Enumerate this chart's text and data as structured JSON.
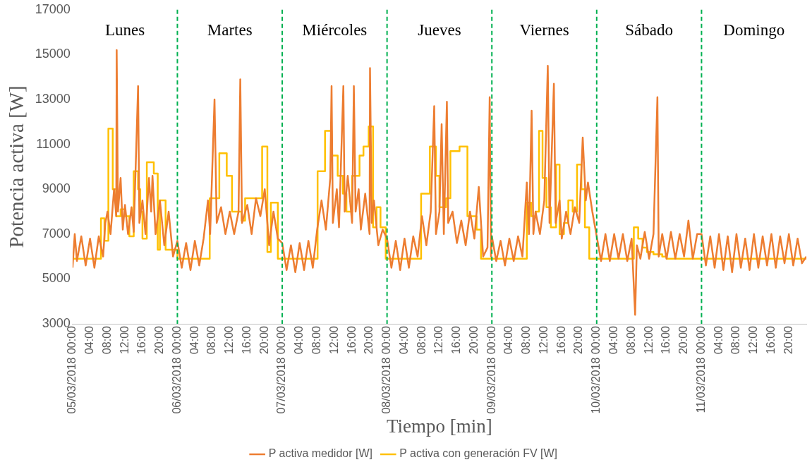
{
  "chart_data": {
    "type": "line",
    "xlabel": "Tiempo [min]",
    "ylabel": "Potencia activa [W]",
    "legend": "bottom",
    "grid": false,
    "marker": "none",
    "line_style": "solid",
    "xlim": [
      "2018-03-05T00:00",
      "2018-03-12T00:00"
    ],
    "ylim": [
      3000,
      17000
    ],
    "yticks": [
      3000,
      5000,
      7000,
      9000,
      11000,
      13000,
      15000,
      17000
    ],
    "xticks": [
      {
        "value": "2018-03-05T00:00",
        "label": "05/03/2018 00:00"
      },
      {
        "value": "2018-03-05T04:00",
        "label": "04:00"
      },
      {
        "value": "2018-03-05T08:00",
        "label": "08:00"
      },
      {
        "value": "2018-03-05T12:00",
        "label": "12:00"
      },
      {
        "value": "2018-03-05T16:00",
        "label": "16:00"
      },
      {
        "value": "2018-03-05T20:00",
        "label": "20:00"
      },
      {
        "value": "2018-03-06T00:00",
        "label": "06/03/2018 00:00"
      },
      {
        "value": "2018-03-06T04:00",
        "label": "04:00"
      },
      {
        "value": "2018-03-06T08:00",
        "label": "08:00"
      },
      {
        "value": "2018-03-06T12:00",
        "label": "12:00"
      },
      {
        "value": "2018-03-06T16:00",
        "label": "16:00"
      },
      {
        "value": "2018-03-06T20:00",
        "label": "20:00"
      },
      {
        "value": "2018-03-07T00:00",
        "label": "07/03/2018 00:00"
      },
      {
        "value": "2018-03-07T04:00",
        "label": "04:00"
      },
      {
        "value": "2018-03-07T08:00",
        "label": "08:00"
      },
      {
        "value": "2018-03-07T12:00",
        "label": "12:00"
      },
      {
        "value": "2018-03-07T16:00",
        "label": "16:00"
      },
      {
        "value": "2018-03-07T20:00",
        "label": "20:00"
      },
      {
        "value": "2018-03-08T00:00",
        "label": "08/03/2018 00:00"
      },
      {
        "value": "2018-03-08T04:00",
        "label": "04:00"
      },
      {
        "value": "2018-03-08T08:00",
        "label": "08:00"
      },
      {
        "value": "2018-03-08T12:00",
        "label": "12:00"
      },
      {
        "value": "2018-03-08T16:00",
        "label": "16:00"
      },
      {
        "value": "2018-03-08T20:00",
        "label": "20:00"
      },
      {
        "value": "2018-03-09T00:00",
        "label": "09/03/2018 00:00"
      },
      {
        "value": "2018-03-09T04:00",
        "label": "04:00"
      },
      {
        "value": "2018-03-09T08:00",
        "label": "08:00"
      },
      {
        "value": "2018-03-09T12:00",
        "label": "12:00"
      },
      {
        "value": "2018-03-09T16:00",
        "label": "16:00"
      },
      {
        "value": "2018-03-09T20:00",
        "label": "20:00"
      },
      {
        "value": "2018-03-10T00:00",
        "label": "10/03/2018 00:00"
      },
      {
        "value": "2018-03-10T04:00",
        "label": "04:00"
      },
      {
        "value": "2018-03-10T08:00",
        "label": "08:00"
      },
      {
        "value": "2018-03-10T12:00",
        "label": "12:00"
      },
      {
        "value": "2018-03-10T16:00",
        "label": "16:00"
      },
      {
        "value": "2018-03-10T20:00",
        "label": "20:00"
      },
      {
        "value": "2018-03-11T00:00",
        "label": "11/03/2018 00:00"
      },
      {
        "value": "2018-03-11T04:00",
        "label": "04:00"
      },
      {
        "value": "2018-03-11T08:00",
        "label": "08:00"
      },
      {
        "value": "2018-03-11T12:00",
        "label": "12:00"
      },
      {
        "value": "2018-03-11T16:00",
        "label": "16:00"
      },
      {
        "value": "2018-03-11T20:00",
        "label": "20:00"
      }
    ],
    "ref_lines": [
      {
        "axis": "x",
        "value": "2018-03-06T00:00",
        "color": "#00b050",
        "line_style": "dashed"
      },
      {
        "axis": "x",
        "value": "2018-03-07T00:00",
        "color": "#00b050",
        "line_style": "dashed"
      },
      {
        "axis": "x",
        "value": "2018-03-08T00:00",
        "color": "#00b050",
        "line_style": "dashed"
      },
      {
        "axis": "x",
        "value": "2018-03-09T00:00",
        "color": "#00b050",
        "line_style": "dashed"
      },
      {
        "axis": "x",
        "value": "2018-03-10T00:00",
        "color": "#00b050",
        "line_style": "dashed"
      },
      {
        "axis": "x",
        "value": "2018-03-11T00:00",
        "color": "#00b050",
        "line_style": "dashed"
      }
    ],
    "annotations": [
      "Lunes",
      "Martes",
      "Miércoles",
      "Jueves",
      "Viernes",
      "Sábado",
      "Domingo"
    ],
    "series": [
      {
        "name": "P activa medidor [W]",
        "color": "#ed7d31",
        "type": "line",
        "x": [
          "2018-03-05T00:00",
          "2018-03-05T00:30",
          "2018-03-05T01:00",
          "2018-03-05T02:00",
          "2018-03-05T03:00",
          "2018-03-05T04:00",
          "2018-03-05T05:00",
          "2018-03-05T06:00",
          "2018-03-05T07:00",
          "2018-03-05T07:30",
          "2018-03-05T08:00",
          "2018-03-05T08:42",
          "2018-03-05T09:30",
          "2018-03-05T10:00",
          "2018-03-05T10:06",
          "2018-03-05T10:24",
          "2018-03-05T11:00",
          "2018-03-05T11:30",
          "2018-03-05T12:00",
          "2018-03-05T12:42",
          "2018-03-05T13:30",
          "2018-03-05T14:00",
          "2018-03-05T15:00",
          "2018-03-05T15:18",
          "2018-03-05T16:00",
          "2018-03-05T16:42",
          "2018-03-05T17:30",
          "2018-03-05T18:00",
          "2018-03-05T18:18",
          "2018-03-05T19:00",
          "2018-03-05T20:00",
          "2018-03-05T21:00",
          "2018-03-05T22:00",
          "2018-03-05T23:00",
          "2018-03-06T00:00",
          "2018-03-06T01:00",
          "2018-03-06T02:00",
          "2018-03-06T03:00",
          "2018-03-06T04:00",
          "2018-03-06T05:00",
          "2018-03-06T06:00",
          "2018-03-06T07:00",
          "2018-03-06T07:30",
          "2018-03-06T08:30",
          "2018-03-06T09:00",
          "2018-03-06T10:00",
          "2018-03-06T11:00",
          "2018-03-06T12:00",
          "2018-03-06T13:00",
          "2018-03-06T14:00",
          "2018-03-06T14:24",
          "2018-03-06T14:48",
          "2018-03-06T16:00",
          "2018-03-06T17:00",
          "2018-03-06T18:00",
          "2018-03-06T19:00",
          "2018-03-06T20:00",
          "2018-03-06T21:00",
          "2018-03-06T22:00",
          "2018-03-06T23:00",
          "2018-03-07T00:00",
          "2018-03-07T01:00",
          "2018-03-07T02:00",
          "2018-03-07T03:00",
          "2018-03-07T04:00",
          "2018-03-07T05:00",
          "2018-03-07T06:00",
          "2018-03-07T07:00",
          "2018-03-07T08:00",
          "2018-03-07T09:00",
          "2018-03-07T10:00",
          "2018-03-07T11:00",
          "2018-03-07T11:18",
          "2018-03-07T11:36",
          "2018-03-07T12:30",
          "2018-03-07T13:00",
          "2018-03-07T14:00",
          "2018-03-07T14:18",
          "2018-03-07T15:00",
          "2018-03-07T16:00",
          "2018-03-07T16:24",
          "2018-03-07T16:48",
          "2018-03-07T17:30",
          "2018-03-07T18:00",
          "2018-03-07T19:00",
          "2018-03-07T20:00",
          "2018-03-07T20:06",
          "2018-03-07T20:30",
          "2018-03-07T21:00",
          "2018-03-07T22:00",
          "2018-03-07T23:00",
          "2018-03-08T00:00",
          "2018-03-08T01:00",
          "2018-03-08T02:00",
          "2018-03-08T03:00",
          "2018-03-08T04:00",
          "2018-03-08T05:00",
          "2018-03-08T06:00",
          "2018-03-08T07:00",
          "2018-03-08T08:00",
          "2018-03-08T09:00",
          "2018-03-08T10:00",
          "2018-03-08T10:48",
          "2018-03-08T11:12",
          "2018-03-08T12:00",
          "2018-03-08T12:30",
          "2018-03-08T13:00",
          "2018-03-08T13:42",
          "2018-03-08T14:00",
          "2018-03-08T15:00",
          "2018-03-08T16:00",
          "2018-03-08T17:00",
          "2018-03-08T18:00",
          "2018-03-08T19:00",
          "2018-03-08T20:00",
          "2018-03-08T21:00",
          "2018-03-08T22:00",
          "2018-03-08T23:00",
          "2018-03-08T23:30",
          "2018-03-08T23:48",
          "2018-03-09T00:00",
          "2018-03-09T01:00",
          "2018-03-09T02:00",
          "2018-03-09T03:00",
          "2018-03-09T04:00",
          "2018-03-09T05:00",
          "2018-03-09T06:00",
          "2018-03-09T07:00",
          "2018-03-09T08:00",
          "2018-03-09T08:30",
          "2018-03-09T09:06",
          "2018-03-09T09:30",
          "2018-03-09T10:00",
          "2018-03-09T11:00",
          "2018-03-09T12:00",
          "2018-03-09T12:48",
          "2018-03-09T13:12",
          "2018-03-09T14:12",
          "2018-03-09T14:36",
          "2018-03-09T15:30",
          "2018-03-09T16:00",
          "2018-03-09T17:00",
          "2018-03-09T18:00",
          "2018-03-09T19:00",
          "2018-03-09T20:00",
          "2018-03-09T20:48",
          "2018-03-09T21:30",
          "2018-03-09T22:00",
          "2018-03-09T23:00",
          "2018-03-10T00:00",
          "2018-03-10T01:00",
          "2018-03-10T02:00",
          "2018-03-10T03:00",
          "2018-03-10T04:00",
          "2018-03-10T05:00",
          "2018-03-10T06:00",
          "2018-03-10T07:00",
          "2018-03-10T08:00",
          "2018-03-10T08:48",
          "2018-03-10T09:12",
          "2018-03-10T10:00",
          "2018-03-10T11:00",
          "2018-03-10T12:00",
          "2018-03-10T13:00",
          "2018-03-10T13:54",
          "2018-03-10T14:12",
          "2018-03-10T15:00",
          "2018-03-10T16:00",
          "2018-03-10T17:00",
          "2018-03-10T18:00",
          "2018-03-10T19:00",
          "2018-03-10T20:00",
          "2018-03-10T21:00",
          "2018-03-10T22:00",
          "2018-03-10T23:00",
          "2018-03-11T00:00",
          "2018-03-11T01:00",
          "2018-03-11T02:00",
          "2018-03-11T03:00",
          "2018-03-11T04:00",
          "2018-03-11T05:00",
          "2018-03-11T06:00",
          "2018-03-11T07:00",
          "2018-03-11T08:00",
          "2018-03-11T09:00",
          "2018-03-11T10:00",
          "2018-03-11T11:00",
          "2018-03-11T12:00",
          "2018-03-11T13:00",
          "2018-03-11T14:00",
          "2018-03-11T15:00",
          "2018-03-11T16:00",
          "2018-03-11T17:00",
          "2018-03-11T18:00",
          "2018-03-11T19:00",
          "2018-03-11T20:00",
          "2018-03-11T21:00",
          "2018-03-11T22:00",
          "2018-03-11T23:00",
          "2018-03-12T00:00"
        ],
        "values": [
          5500,
          7000,
          5800,
          6900,
          5600,
          6800,
          5500,
          6900,
          6000,
          7500,
          8000,
          7000,
          9000,
          7800,
          15200,
          8000,
          9500,
          7200,
          8300,
          7000,
          8200,
          7100,
          13600,
          7500,
          8500,
          7000,
          9500,
          8000,
          9600,
          7000,
          8500,
          6500,
          8000,
          6000,
          6700,
          5500,
          6600,
          5400,
          6700,
          5600,
          6800,
          8500,
          7000,
          13000,
          7500,
          8200,
          7000,
          8000,
          7000,
          8000,
          13900,
          7500,
          8300,
          7000,
          8600,
          7800,
          9000,
          6500,
          8000,
          6800,
          6600,
          5400,
          6500,
          5300,
          6600,
          5400,
          6700,
          5500,
          7200,
          8500,
          7200,
          9500,
          13600,
          7500,
          9000,
          7300,
          13600,
          8000,
          9600,
          7500,
          13600,
          8000,
          9000,
          7200,
          8800,
          7000,
          14400,
          7500,
          8500,
          6500,
          7200,
          6800,
          5500,
          6700,
          5400,
          6800,
          5500,
          6900,
          6000,
          7800,
          6500,
          8000,
          12700,
          7000,
          8000,
          11900,
          7000,
          12900,
          7500,
          8000,
          6600,
          7600,
          6500,
          8000,
          6800,
          9100,
          6000,
          6400,
          13100,
          6000,
          6900,
          5800,
          6700,
          5600,
          6800,
          5800,
          6900,
          6000,
          9300,
          7000,
          12500,
          7000,
          8000,
          7000,
          8500,
          14500,
          7500,
          13700,
          7500,
          8500,
          6800,
          8000,
          7000,
          8200,
          7500,
          11300,
          8500,
          9300,
          8000,
          6900,
          5800,
          7000,
          5800,
          7000,
          5900,
          7000,
          5800,
          6800,
          3400,
          6500,
          5900,
          7100,
          5900,
          7000,
          13100,
          6000,
          7000,
          5900,
          7100,
          5900,
          7000,
          6000,
          7600,
          5900,
          7000,
          7000,
          5600,
          6900,
          5500,
          7000,
          5400,
          6900,
          5300,
          7000,
          5500,
          6800,
          5400,
          7000,
          5500,
          6900,
          5600,
          7000,
          5500,
          6900,
          5700,
          7000,
          5600,
          6800,
          5700,
          6000
        ]
      },
      {
        "name": "P activa con generación FV [W]",
        "color": "#ffc000",
        "type": "step",
        "x": [
          "2018-03-05T00:00",
          "2018-03-05T06:00",
          "2018-03-05T06:30",
          "2018-03-05T07:18",
          "2018-03-05T08:12",
          "2018-03-05T09:12",
          "2018-03-05T10:00",
          "2018-03-05T11:00",
          "2018-03-05T12:00",
          "2018-03-05T13:00",
          "2018-03-05T14:00",
          "2018-03-05T15:00",
          "2018-03-05T15:30",
          "2018-03-05T16:00",
          "2018-03-05T17:00",
          "2018-03-05T18:36",
          "2018-03-05T19:30",
          "2018-03-05T20:00",
          "2018-03-05T21:18",
          "2018-03-05T23:00",
          "2018-03-06T00:00",
          "2018-03-06T07:24",
          "2018-03-06T09:36",
          "2018-03-06T11:18",
          "2018-03-06T12:30",
          "2018-03-06T14:42",
          "2018-03-06T15:30",
          "2018-03-06T19:24",
          "2018-03-06T20:36",
          "2018-03-06T21:24",
          "2018-03-06T23:00",
          "2018-03-07T00:00",
          "2018-03-07T08:06",
          "2018-03-07T09:48",
          "2018-03-07T11:18",
          "2018-03-07T12:42",
          "2018-03-07T13:54",
          "2018-03-07T14:42",
          "2018-03-07T16:00",
          "2018-03-07T17:42",
          "2018-03-07T18:36",
          "2018-03-07T19:48",
          "2018-03-07T20:48",
          "2018-03-07T21:36",
          "2018-03-07T22:30",
          "2018-03-07T23:42",
          "2018-03-08T00:00",
          "2018-03-08T07:48",
          "2018-03-08T09:48",
          "2018-03-08T11:12",
          "2018-03-08T12:00",
          "2018-03-08T13:30",
          "2018-03-08T14:30",
          "2018-03-08T16:36",
          "2018-03-08T18:24",
          "2018-03-08T20:30",
          "2018-03-08T21:30",
          "2018-03-09T00:00",
          "2018-03-09T08:00",
          "2018-03-09T09:00",
          "2018-03-09T10:00",
          "2018-03-09T10:48",
          "2018-03-09T11:36",
          "2018-03-09T12:30",
          "2018-03-09T13:30",
          "2018-03-09T14:42",
          "2018-03-09T15:30",
          "2018-03-09T16:30",
          "2018-03-09T17:30",
          "2018-03-09T18:30",
          "2018-03-09T19:30",
          "2018-03-09T20:30",
          "2018-03-09T21:18",
          "2018-03-09T22:18",
          "2018-03-10T00:00",
          "2018-03-10T08:30",
          "2018-03-10T09:30",
          "2018-03-10T10:30",
          "2018-03-10T11:30",
          "2018-03-10T13:00",
          "2018-03-10T15:00",
          "2018-03-10T16:00",
          "2018-03-11T00:00",
          "2018-03-12T00:00"
        ],
        "values": [
          5900,
          5900,
          7700,
          6700,
          11700,
          9000,
          7800,
          8100,
          7800,
          6900,
          9800,
          9000,
          8000,
          6800,
          10200,
          9700,
          6300,
          8500,
          6300,
          6300,
          5900,
          8600,
          10600,
          9600,
          8000,
          7600,
          8600,
          10900,
          6200,
          8400,
          5900,
          5900,
          9800,
          11600,
          10500,
          9600,
          8800,
          8000,
          9600,
          10500,
          10900,
          11800,
          7300,
          8200,
          7300,
          5900,
          5900,
          8800,
          10900,
          9600,
          8200,
          8600,
          10700,
          10900,
          7800,
          7200,
          5900,
          5900,
          8400,
          7800,
          8000,
          11600,
          9500,
          8200,
          7300,
          10100,
          7000,
          7500,
          8500,
          8000,
          10100,
          9000,
          7300,
          5900,
          5900,
          7300,
          6800,
          6400,
          6200,
          6100,
          6000,
          5900,
          5900,
          5900
        ]
      }
    ]
  }
}
